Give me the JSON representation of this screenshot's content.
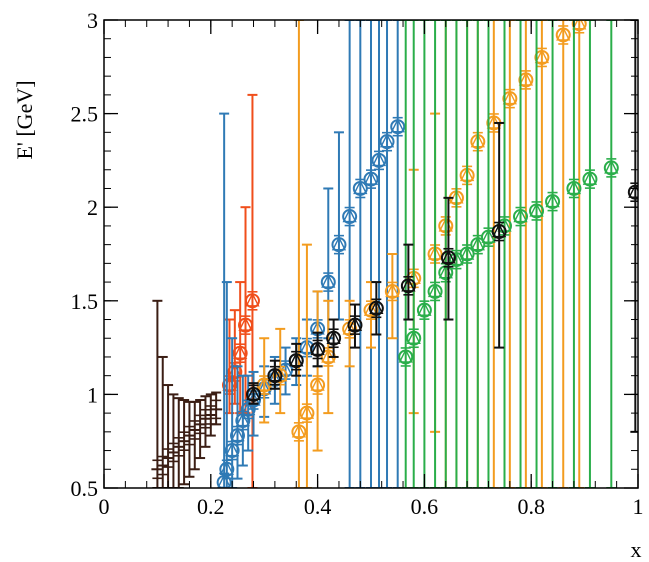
{
  "chart_data": {
    "type": "scatter",
    "xlabel": "x",
    "ylabel": "E' [GeV]",
    "xlim": [
      0,
      1
    ],
    "ylim": [
      0.5,
      3
    ],
    "x_ticks": [
      0,
      0.2,
      0.4,
      0.6,
      0.8,
      1
    ],
    "y_ticks": [
      0.5,
      1,
      1.5,
      2,
      2.5,
      3
    ],
    "x_tick_labels": [
      "0",
      "0.2",
      "0.4",
      "0.6",
      "0.8",
      "1"
    ],
    "y_tick_labels": [
      "0.5",
      "1",
      "1.5",
      "2",
      "2.5",
      "3"
    ],
    "grid": false,
    "series": [
      {
        "color": "#3b1e14",
        "marker": "plus",
        "points": [
          {
            "x": 0.1,
            "y": 0.6,
            "lo": 0.5,
            "hi": 1.5
          },
          {
            "x": 0.11,
            "y": 0.62,
            "lo": 0.5,
            "hi": 1.2
          },
          {
            "x": 0.12,
            "y": 0.66,
            "lo": 0.5,
            "hi": 1.05
          },
          {
            "x": 0.13,
            "y": 0.69,
            "lo": 0.5,
            "hi": 1.0
          },
          {
            "x": 0.14,
            "y": 0.72,
            "lo": 0.5,
            "hi": 0.98
          },
          {
            "x": 0.15,
            "y": 0.75,
            "lo": 0.52,
            "hi": 0.97
          },
          {
            "x": 0.16,
            "y": 0.78,
            "lo": 0.56,
            "hi": 0.96
          },
          {
            "x": 0.17,
            "y": 0.81,
            "lo": 0.6,
            "hi": 0.96
          },
          {
            "x": 0.18,
            "y": 0.84,
            "lo": 0.66,
            "hi": 0.97
          },
          {
            "x": 0.19,
            "y": 0.87,
            "lo": 0.72,
            "hi": 0.99
          },
          {
            "x": 0.2,
            "y": 0.89,
            "lo": 0.78,
            "hi": 1.0
          },
          {
            "x": 0.21,
            "y": 0.92,
            "lo": 0.84,
            "hi": 1.01
          }
        ]
      },
      {
        "color": "#f04e1b",
        "marker": "circle",
        "points": [
          {
            "x": 0.235,
            "y": 1.05,
            "lo": 0.9,
            "hi": 1.4
          },
          {
            "x": 0.245,
            "y": 1.12,
            "lo": 0.95,
            "hi": 1.45
          },
          {
            "x": 0.255,
            "y": 1.22,
            "lo": 0.9,
            "hi": 1.6
          },
          {
            "x": 0.265,
            "y": 1.37,
            "lo": 0.9,
            "hi": 2.0
          },
          {
            "x": 0.278,
            "y": 1.5,
            "lo": 0.5,
            "hi": 2.6
          }
        ]
      },
      {
        "color": "#2f7ab5",
        "marker": "circle",
        "points": [
          {
            "x": 0.225,
            "y": 0.53,
            "lo": 0.5,
            "hi": 2.5
          },
          {
            "x": 0.23,
            "y": 0.6,
            "lo": 0.5,
            "hi": 1.6
          },
          {
            "x": 0.24,
            "y": 0.7,
            "lo": 0.5,
            "hi": 1.3
          },
          {
            "x": 0.25,
            "y": 0.78,
            "lo": 0.55,
            "hi": 1.15
          },
          {
            "x": 0.26,
            "y": 0.86,
            "lo": 0.62,
            "hi": 1.1
          },
          {
            "x": 0.27,
            "y": 0.92,
            "lo": 0.7,
            "hi": 1.1
          },
          {
            "x": 0.28,
            "y": 0.97,
            "lo": 0.78,
            "hi": 1.12
          },
          {
            "x": 0.3,
            "y": 1.03,
            "lo": 0.88,
            "hi": 1.15
          },
          {
            "x": 0.32,
            "y": 1.08,
            "lo": 0.95,
            "hi": 1.2
          },
          {
            "x": 0.34,
            "y": 1.13,
            "lo": 1.0,
            "hi": 1.25
          },
          {
            "x": 0.36,
            "y": 1.18,
            "lo": 1.05,
            "hi": 1.3
          },
          {
            "x": 0.38,
            "y": 1.25,
            "lo": 1.1,
            "hi": 1.4
          },
          {
            "x": 0.4,
            "y": 1.35,
            "lo": 1.15,
            "hi": 1.55
          },
          {
            "x": 0.42,
            "y": 1.6,
            "lo": 1.3,
            "hi": 2.1
          },
          {
            "x": 0.44,
            "y": 1.8,
            "lo": 1.4,
            "hi": 2.4
          },
          {
            "x": 0.46,
            "y": 1.95,
            "lo": 0.5,
            "hi": 3.0
          },
          {
            "x": 0.48,
            "y": 2.1,
            "lo": 0.5,
            "hi": 3.0
          },
          {
            "x": 0.5,
            "y": 2.15,
            "lo": 0.5,
            "hi": 3.0
          },
          {
            "x": 0.515,
            "y": 2.25,
            "lo": 0.5,
            "hi": 3.0
          },
          {
            "x": 0.53,
            "y": 2.35,
            "lo": 0.5,
            "hi": 3.0
          },
          {
            "x": 0.55,
            "y": 2.43,
            "lo": 0.5,
            "hi": 3.0
          }
        ]
      },
      {
        "color": "#f39c1f",
        "marker": "circle",
        "points": [
          {
            "x": 0.3,
            "y": 1.05,
            "lo": 0.85,
            "hi": 1.3
          },
          {
            "x": 0.33,
            "y": 1.1,
            "lo": 0.9,
            "hi": 1.35
          },
          {
            "x": 0.365,
            "y": 0.8,
            "lo": 0.5,
            "hi": 3.0
          },
          {
            "x": 0.38,
            "y": 0.9,
            "lo": 0.5,
            "hi": 1.8
          },
          {
            "x": 0.4,
            "y": 1.05,
            "lo": 0.7,
            "hi": 1.55
          },
          {
            "x": 0.42,
            "y": 1.2,
            "lo": 0.9,
            "hi": 1.5
          },
          {
            "x": 0.46,
            "y": 1.35,
            "lo": 1.15,
            "hi": 1.5
          },
          {
            "x": 0.5,
            "y": 1.45,
            "lo": 1.25,
            "hi": 1.6
          },
          {
            "x": 0.54,
            "y": 1.55,
            "lo": 1.3,
            "hi": 1.75
          },
          {
            "x": 0.58,
            "y": 1.62,
            "lo": 0.9,
            "hi": 2.2
          },
          {
            "x": 0.62,
            "y": 1.75,
            "lo": 0.8,
            "hi": 2.5
          },
          {
            "x": 0.64,
            "y": 1.9,
            "lo": 0.5,
            "hi": 3.0
          },
          {
            "x": 0.66,
            "y": 2.05,
            "lo": 0.5,
            "hi": 3.0
          },
          {
            "x": 0.68,
            "y": 2.17,
            "lo": 0.5,
            "hi": 3.0
          },
          {
            "x": 0.7,
            "y": 2.35,
            "lo": 0.5,
            "hi": 3.0
          },
          {
            "x": 0.73,
            "y": 2.45,
            "lo": 0.5,
            "hi": 3.0
          },
          {
            "x": 0.76,
            "y": 2.58,
            "lo": 0.5,
            "hi": 3.0
          },
          {
            "x": 0.79,
            "y": 2.68,
            "lo": 0.5,
            "hi": 3.0
          },
          {
            "x": 0.82,
            "y": 2.8,
            "lo": 0.5,
            "hi": 3.0
          },
          {
            "x": 0.86,
            "y": 2.92,
            "lo": 0.5,
            "hi": 3.0
          },
          {
            "x": 0.89,
            "y": 2.98,
            "lo": 0.5,
            "hi": 3.0
          }
        ]
      },
      {
        "color": "#2aae4a",
        "marker": "circle",
        "points": [
          {
            "x": 0.565,
            "y": 1.2,
            "lo": 0.5,
            "hi": 3.0
          },
          {
            "x": 0.58,
            "y": 1.3,
            "lo": 0.5,
            "hi": 3.0
          },
          {
            "x": 0.6,
            "y": 1.45,
            "lo": 0.5,
            "hi": 3.0
          },
          {
            "x": 0.62,
            "y": 1.55,
            "lo": 0.5,
            "hi": 3.0
          },
          {
            "x": 0.64,
            "y": 1.65,
            "lo": 0.5,
            "hi": 3.0
          },
          {
            "x": 0.66,
            "y": 1.72,
            "lo": 0.5,
            "hi": 3.0
          },
          {
            "x": 0.68,
            "y": 1.75,
            "lo": 0.5,
            "hi": 3.0
          },
          {
            "x": 0.7,
            "y": 1.8,
            "lo": 0.5,
            "hi": 3.0
          },
          {
            "x": 0.72,
            "y": 1.84,
            "lo": 0.5,
            "hi": 3.0
          },
          {
            "x": 0.75,
            "y": 1.9,
            "lo": 0.5,
            "hi": 3.0
          },
          {
            "x": 0.78,
            "y": 1.95,
            "lo": 0.5,
            "hi": 3.0
          },
          {
            "x": 0.81,
            "y": 1.98,
            "lo": 0.5,
            "hi": 3.0
          },
          {
            "x": 0.84,
            "y": 2.03,
            "lo": 0.5,
            "hi": 3.0
          },
          {
            "x": 0.88,
            "y": 2.1,
            "lo": 0.5,
            "hi": 3.0
          },
          {
            "x": 0.91,
            "y": 2.15,
            "lo": 0.5,
            "hi": 3.0
          },
          {
            "x": 0.95,
            "y": 2.21,
            "lo": 0.5,
            "hi": 3.0
          }
        ]
      },
      {
        "color": "#111111",
        "marker": "circle",
        "points": [
          {
            "x": 0.28,
            "y": 1.0,
            "lo": 0.95,
            "hi": 1.06
          },
          {
            "x": 0.32,
            "y": 1.1,
            "lo": 1.03,
            "hi": 1.18
          },
          {
            "x": 0.36,
            "y": 1.18,
            "lo": 1.1,
            "hi": 1.27
          },
          {
            "x": 0.4,
            "y": 1.24,
            "lo": 1.15,
            "hi": 1.33
          },
          {
            "x": 0.43,
            "y": 1.3,
            "lo": 1.2,
            "hi": 1.4
          },
          {
            "x": 0.47,
            "y": 1.37,
            "lo": 1.25,
            "hi": 1.48
          },
          {
            "x": 0.51,
            "y": 1.46,
            "lo": 1.32,
            "hi": 1.6
          },
          {
            "x": 0.57,
            "y": 1.58,
            "lo": 1.4,
            "hi": 1.8
          },
          {
            "x": 0.645,
            "y": 1.73,
            "lo": 1.4,
            "hi": 2.05
          },
          {
            "x": 0.74,
            "y": 1.87,
            "lo": 1.25,
            "hi": 2.45
          },
          {
            "x": 0.995,
            "y": 2.08,
            "lo": 0.8,
            "hi": 3.0
          }
        ]
      }
    ]
  },
  "axes": {
    "xlabel": "x",
    "ylabel": "E' [GeV]"
  }
}
